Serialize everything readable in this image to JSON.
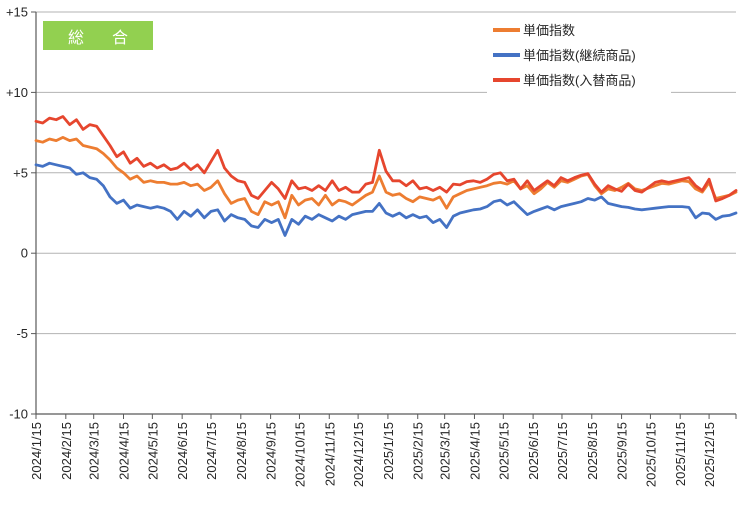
{
  "badge": {
    "label": "総　合",
    "bg": "#92D050",
    "text_color": "#FFFFFF"
  },
  "legend": {
    "position": "top-right",
    "items": [
      {
        "label": "単価指数",
        "color": "#ED7D31"
      },
      {
        "label": "単価指数(継続商品)",
        "color": "#4472C4"
      },
      {
        "label": "単価指数(入替商品)",
        "color": "#E6462E"
      }
    ]
  },
  "colors": {
    "background": "#FFFFFF",
    "grid": "#B3B3B3",
    "axis": "#595959",
    "label": "#262626",
    "badge_green": "#92D050"
  },
  "chart_data": {
    "type": "line",
    "title": "総合",
    "xlabel": "",
    "ylabel": "",
    "ylim": [
      -10,
      15
    ],
    "grid": "horizontal",
    "legend_position": "top-right",
    "x_start": "2024/1/15",
    "x_interval": "weekly",
    "x_tick_labels": [
      "2024/1/15",
      "2024/2/15",
      "2024/3/15",
      "2024/4/15",
      "2024/5/15",
      "2024/6/15",
      "2024/7/15",
      "2024/8/15",
      "2024/9/15",
      "2024/10/15",
      "2024/11/15",
      "2024/12/15",
      "2025/1/15",
      "2025/2/15",
      "2025/3/15",
      "2025/4/15",
      "2025/5/15",
      "2025/6/15",
      "2025/7/15",
      "2025/8/15",
      "2025/9/15",
      "2025/10/15",
      "2025/11/15",
      "2025/12/15"
    ],
    "y_ticks": [
      {
        "v": 15,
        "label": "+15"
      },
      {
        "v": 10,
        "label": "+10"
      },
      {
        "v": 5,
        "label": "+5"
      },
      {
        "v": 0,
        "label": "0"
      },
      {
        "v": -5,
        "label": "-5"
      },
      {
        "v": -10,
        "label": "-10"
      }
    ],
    "series": [
      {
        "name": "単価指数",
        "color": "#ED7D31",
        "values": [
          7.0,
          6.9,
          7.1,
          7.0,
          7.2,
          7.0,
          7.1,
          6.7,
          6.6,
          6.5,
          6.2,
          5.8,
          5.3,
          5.0,
          4.6,
          4.8,
          4.4,
          4.5,
          4.4,
          4.4,
          4.3,
          4.3,
          4.4,
          4.2,
          4.3,
          3.9,
          4.1,
          4.5,
          3.7,
          3.1,
          3.3,
          3.4,
          2.6,
          2.4,
          3.2,
          3.0,
          3.2,
          2.2,
          3.6,
          3.0,
          3.3,
          3.4,
          3.0,
          3.6,
          3.0,
          3.3,
          3.2,
          3.0,
          3.3,
          3.6,
          3.8,
          4.8,
          3.8,
          3.6,
          3.7,
          3.4,
          3.2,
          3.5,
          3.4,
          3.3,
          3.5,
          2.8,
          3.5,
          3.7,
          3.9,
          4.0,
          4.1,
          4.2,
          4.35,
          4.4,
          4.3,
          4.5,
          4.0,
          4.2,
          3.7,
          4.0,
          4.4,
          4.1,
          4.5,
          4.4,
          4.6,
          4.8,
          4.9,
          4.2,
          3.7,
          4.0,
          3.9,
          4.1,
          4.35,
          4.0,
          3.9,
          4.05,
          4.2,
          4.35,
          4.3,
          4.4,
          4.5,
          4.45,
          4.0,
          3.8,
          4.4,
          3.4,
          3.5,
          3.6,
          3.8
        ]
      },
      {
        "name": "単価指数(継続商品)",
        "color": "#4472C4",
        "values": [
          5.5,
          5.4,
          5.6,
          5.5,
          5.4,
          5.3,
          4.9,
          5.0,
          4.7,
          4.6,
          4.2,
          3.5,
          3.1,
          3.3,
          2.8,
          3.0,
          2.9,
          2.8,
          2.9,
          2.8,
          2.6,
          2.1,
          2.6,
          2.3,
          2.7,
          2.2,
          2.6,
          2.7,
          2.0,
          2.4,
          2.2,
          2.1,
          1.7,
          1.6,
          2.1,
          1.9,
          2.1,
          1.1,
          2.1,
          1.8,
          2.3,
          2.1,
          2.4,
          2.2,
          2.0,
          2.3,
          2.1,
          2.4,
          2.5,
          2.6,
          2.6,
          3.1,
          2.5,
          2.3,
          2.5,
          2.2,
          2.4,
          2.2,
          2.3,
          1.9,
          2.1,
          1.6,
          2.3,
          2.5,
          2.6,
          2.7,
          2.75,
          2.9,
          3.2,
          3.3,
          3.0,
          3.2,
          2.8,
          2.4,
          2.6,
          2.75,
          2.9,
          2.7,
          2.9,
          3.0,
          3.1,
          3.2,
          3.4,
          3.3,
          3.5,
          3.1,
          3.0,
          2.9,
          2.85,
          2.75,
          2.7,
          2.75,
          2.8,
          2.85,
          2.9,
          2.9,
          2.9,
          2.85,
          2.2,
          2.5,
          2.45,
          2.1,
          2.3,
          2.35,
          2.5
        ]
      },
      {
        "name": "単価指数(入替商品)",
        "color": "#E6462E",
        "values": [
          8.2,
          8.1,
          8.4,
          8.3,
          8.5,
          8.0,
          8.3,
          7.7,
          8.0,
          7.9,
          7.3,
          6.7,
          6.0,
          6.3,
          5.6,
          5.9,
          5.4,
          5.6,
          5.3,
          5.5,
          5.2,
          5.3,
          5.6,
          5.2,
          5.5,
          5.0,
          5.7,
          6.4,
          5.3,
          4.8,
          4.5,
          4.4,
          3.6,
          3.4,
          3.9,
          4.4,
          4.0,
          3.4,
          4.5,
          4.0,
          4.1,
          3.9,
          4.2,
          3.9,
          4.5,
          3.9,
          4.1,
          3.8,
          3.8,
          4.3,
          4.4,
          6.4,
          5.1,
          4.5,
          4.5,
          4.2,
          4.5,
          4.0,
          4.1,
          3.9,
          4.1,
          3.8,
          4.3,
          4.25,
          4.45,
          4.5,
          4.4,
          4.6,
          4.9,
          5.0,
          4.5,
          4.6,
          4.0,
          4.5,
          3.9,
          4.2,
          4.5,
          4.2,
          4.7,
          4.5,
          4.7,
          4.85,
          4.95,
          4.3,
          3.8,
          4.2,
          4.0,
          3.85,
          4.3,
          3.9,
          3.8,
          4.1,
          4.4,
          4.5,
          4.4,
          4.5,
          4.6,
          4.7,
          4.2,
          3.9,
          4.6,
          3.25,
          3.4,
          3.6,
          3.9
        ]
      }
    ]
  }
}
